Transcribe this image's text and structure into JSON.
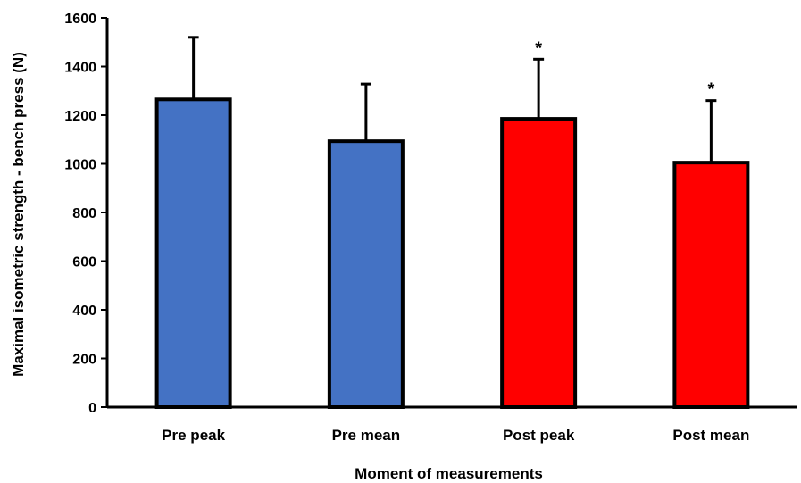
{
  "chart_data": {
    "type": "bar",
    "title": "",
    "xlabel": "Moment of measurements",
    "ylabel": "Maximal isometric strength - bench press (N)",
    "ylim": [
      0,
      1600
    ],
    "yticks": [
      "0",
      "200",
      "400",
      "600",
      "800",
      "1000",
      "1200",
      "1400",
      "1600"
    ],
    "ytick_values": [
      0,
      200,
      400,
      600,
      800,
      1000,
      1200,
      1400,
      1600
    ],
    "grid": false,
    "categories": [
      "Pre peak",
      "Pre mean",
      "Post peak",
      "Post mean"
    ],
    "values": [
      1265,
      1093,
      1185,
      1005
    ],
    "error_upper": [
      255,
      235,
      245,
      255
    ],
    "colors": [
      "#4472c4",
      "#4472c4",
      "#ff0000",
      "#ff0000"
    ],
    "significance": [
      "",
      "",
      "*",
      "*"
    ]
  }
}
